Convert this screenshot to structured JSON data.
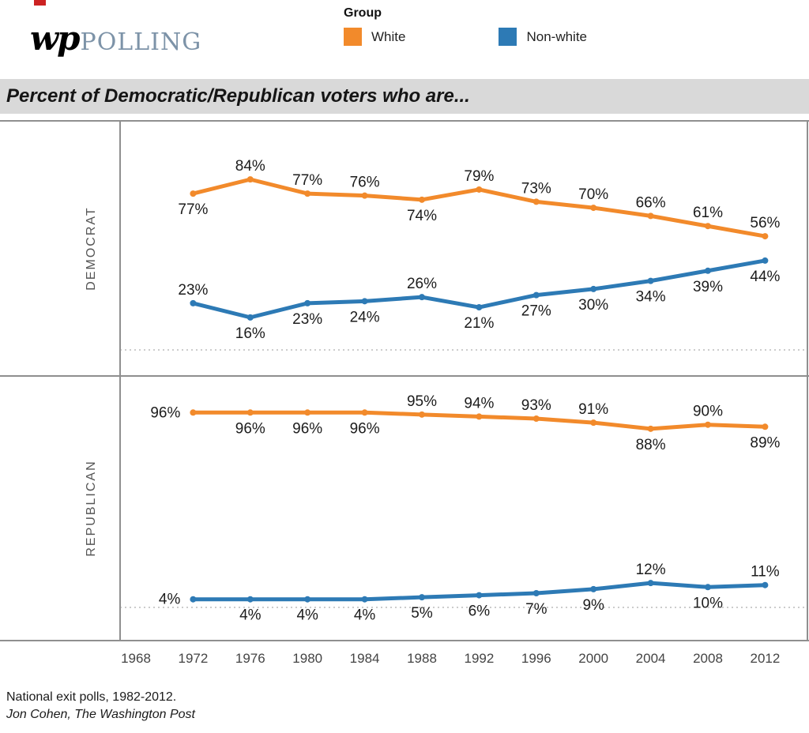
{
  "header": {
    "logo_wp": "wp",
    "logo_polling": "POLLING",
    "legend": {
      "title": "Group",
      "items": [
        {
          "label": "White",
          "color": "#f28a2b"
        },
        {
          "label": "Non-white",
          "color": "#2d7ab5"
        }
      ]
    }
  },
  "title": "Percent of Democratic/Republican voters who are...",
  "chart_data": {
    "type": "line",
    "title": "Percent of Democratic/Republican voters who are...",
    "x": [
      1972,
      1976,
      1980,
      1984,
      1988,
      1992,
      1996,
      2000,
      2004,
      2008,
      2012
    ],
    "x_axis_ticks": [
      1968,
      1972,
      1976,
      1980,
      1984,
      1988,
      1992,
      1996,
      2000,
      2004,
      2008,
      2012
    ],
    "ylim": [
      0,
      112
    ],
    "grid": "dotted zero baseline in each panel",
    "legend_position": "top",
    "value_suffix": "%",
    "panels": [
      {
        "label": "DEMOCRAT",
        "series": [
          {
            "name": "White",
            "color": "#f28a2b",
            "values": [
              77,
              84,
              77,
              76,
              74,
              79,
              73,
              70,
              66,
              61,
              56
            ],
            "label_positions": [
              "below",
              "above",
              "above",
              "above",
              "below",
              "above",
              "above",
              "above",
              "above",
              "above",
              "above"
            ]
          },
          {
            "name": "Non-white",
            "color": "#2d7ab5",
            "values": [
              23,
              16,
              23,
              24,
              26,
              21,
              27,
              30,
              34,
              39,
              44
            ],
            "label_positions": [
              "above",
              "below",
              "below",
              "below",
              "above",
              "below",
              "below",
              "below",
              "below",
              "below",
              "below"
            ]
          }
        ]
      },
      {
        "label": "REPUBLICAN",
        "series": [
          {
            "name": "White",
            "color": "#f28a2b",
            "values": [
              96,
              96,
              96,
              96,
              95,
              94,
              93,
              91,
              88,
              90,
              89
            ],
            "label_positions": [
              "left",
              "below",
              "below",
              "below",
              "above",
              "above",
              "above",
              "above",
              "below",
              "above",
              "below"
            ]
          },
          {
            "name": "Non-white",
            "color": "#2d7ab5",
            "values": [
              4,
              4,
              4,
              4,
              5,
              6,
              7,
              9,
              12,
              10,
              11
            ],
            "label_positions": [
              "left",
              "below",
              "below",
              "below",
              "below",
              "below",
              "below",
              "below",
              "above",
              "below",
              "above"
            ]
          }
        ]
      }
    ]
  },
  "footer": {
    "source": "National exit polls, 1982-2012.",
    "byline": "Jon Cohen, The Washington Post"
  }
}
